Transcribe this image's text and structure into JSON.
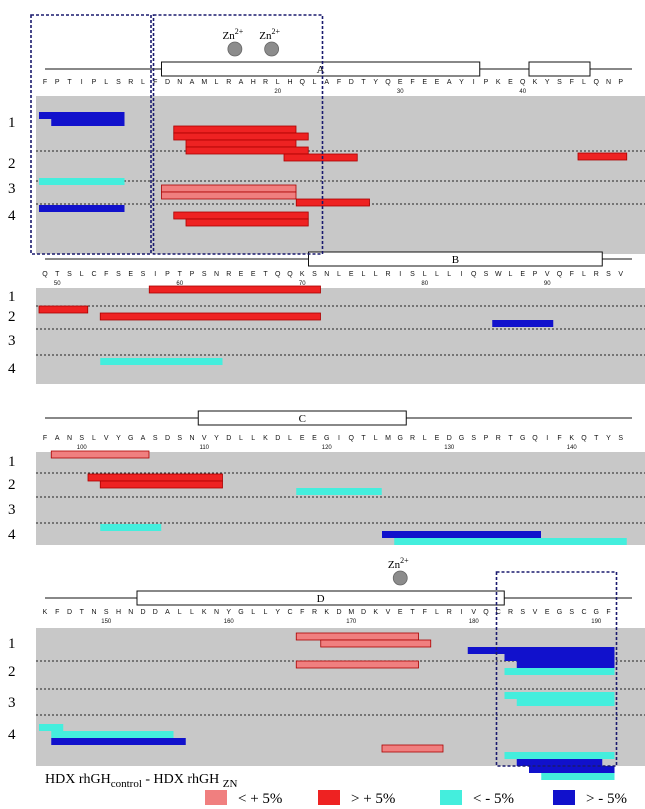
{
  "colors": {
    "light_red": "#f07f7f",
    "red": "#ee2222",
    "cyan": "#44eedd",
    "blue": "#1111cc",
    "panel": "#c8c8c8"
  },
  "zn_label": "Zn",
  "zn_superscript": "2+",
  "panels": [
    {
      "id": "p1",
      "sequence": "FPTIPLSRLFDNAMLRAHRLHQLAFDTYQEFEEAYIPKEQKYSFLQNP",
      "start": 1,
      "numbers": [
        {
          "pos": 20,
          "text": "20"
        },
        {
          "pos": 30,
          "text": "30"
        },
        {
          "pos": 40,
          "text": "40"
        }
      ],
      "helices": [
        {
          "name": "A",
          "start": 11,
          "end": 36
        },
        {
          "name": "",
          "start": 41,
          "end": 45
        }
      ],
      "zn": [
        {
          "pos": 16.5
        },
        {
          "pos": 19.5
        }
      ],
      "rows": [
        "1",
        "2",
        "3",
        "4"
      ],
      "peptides": [
        {
          "row": 1,
          "start": 1,
          "end": 7,
          "type": "blue"
        },
        {
          "row": 1,
          "start": 2,
          "end": 7,
          "type": "blue"
        },
        {
          "row": 1,
          "start": 12,
          "end": 21,
          "type": "red"
        },
        {
          "row": 1,
          "start": 12,
          "end": 22,
          "type": "red"
        },
        {
          "row": 1,
          "start": 13,
          "end": 21,
          "type": "red"
        },
        {
          "row": 1,
          "start": 13,
          "end": 22,
          "type": "red"
        },
        {
          "row": 1,
          "start": 21,
          "end": 26,
          "type": "red"
        },
        {
          "row": 2,
          "start": 45,
          "end": 48,
          "type": "red"
        },
        {
          "row": 3,
          "start": 1,
          "end": 7,
          "type": "cyan"
        },
        {
          "row": 3,
          "start": 11,
          "end": 21,
          "type": "light_red"
        },
        {
          "row": 3,
          "start": 11,
          "end": 21,
          "type": "light_red"
        },
        {
          "row": 3,
          "start": 22,
          "end": 27,
          "type": "red"
        },
        {
          "row": 4,
          "start": 1,
          "end": 7,
          "type": "blue"
        },
        {
          "row": 4,
          "start": 12,
          "end": 22,
          "type": "red"
        },
        {
          "row": 4,
          "start": 13,
          "end": 22,
          "type": "red"
        }
      ]
    },
    {
      "id": "p2",
      "sequence": "QTSLCFSESIPTPSNREETQQKSNLELLRISLLLIQSWLEPVQFLRSV",
      "start": 49,
      "numbers": [
        {
          "pos": 50,
          "text": "50"
        },
        {
          "pos": 60,
          "text": "60"
        },
        {
          "pos": 70,
          "text": "70"
        },
        {
          "pos": 80,
          "text": "80"
        },
        {
          "pos": 90,
          "text": "90"
        }
      ],
      "helices": [
        {
          "name": "B",
          "start": 71,
          "end": 94
        }
      ],
      "zn": [],
      "rows": [
        "1",
        "2",
        "3",
        "4"
      ],
      "peptides": [
        {
          "row": 1,
          "start": 58,
          "end": 71,
          "type": "red"
        },
        {
          "row": 2,
          "start": 49,
          "end": 52,
          "type": "red"
        },
        {
          "row": 2,
          "start": 54,
          "end": 71,
          "type": "red"
        },
        {
          "row": 2,
          "start": 86,
          "end": 90,
          "type": "blue"
        },
        {
          "row": 4,
          "start": 54,
          "end": 63,
          "type": "cyan"
        }
      ]
    },
    {
      "id": "p3",
      "sequence": "FANSLVYGASDSNVYDLLKDLEEGIQTLMGRLEDGSPRTGQIFKQTYS",
      "start": 97,
      "numbers": [
        {
          "pos": 100,
          "text": "100"
        },
        {
          "pos": 110,
          "text": "110"
        },
        {
          "pos": 120,
          "text": "120"
        },
        {
          "pos": 130,
          "text": "130"
        },
        {
          "pos": 140,
          "text": "140"
        }
      ],
      "helices": [
        {
          "name": "C",
          "start": 110,
          "end": 126
        }
      ],
      "zn": [],
      "rows": [
        "1",
        "2",
        "3",
        "4"
      ],
      "peptides": [
        {
          "row": 1,
          "start": 98,
          "end": 105,
          "type": "light_red"
        },
        {
          "row": 2,
          "start": 101,
          "end": 111,
          "type": "red"
        },
        {
          "row": 2,
          "start": 102,
          "end": 111,
          "type": "red"
        },
        {
          "row": 2,
          "start": 118,
          "end": 124,
          "type": "cyan"
        },
        {
          "row": 4,
          "start": 102,
          "end": 106,
          "type": "cyan"
        },
        {
          "row": 4,
          "start": 125,
          "end": 137,
          "type": "blue"
        },
        {
          "row": 4,
          "start": 126,
          "end": 144,
          "type": "cyan"
        }
      ]
    },
    {
      "id": "p4",
      "sequence": "KFDTNSHNDDALLKNYGLLYCFRKDMDKVETFLRIVQCRSVEGSCGF",
      "start": 145,
      "numbers": [
        {
          "pos": 150,
          "text": "150"
        },
        {
          "pos": 160,
          "text": "160"
        },
        {
          "pos": 170,
          "text": "170"
        },
        {
          "pos": 180,
          "text": "180"
        },
        {
          "pos": 190,
          "text": "190"
        }
      ],
      "helices": [
        {
          "name": "D",
          "start": 153,
          "end": 182
        }
      ],
      "zn": [
        {
          "pos": 174
        }
      ],
      "rows": [
        "1",
        "2",
        "3",
        "4"
      ],
      "peptides": [
        {
          "row": 1,
          "start": 166,
          "end": 175,
          "type": "light_red"
        },
        {
          "row": 1,
          "start": 168,
          "end": 176,
          "type": "light_red"
        },
        {
          "row": 1,
          "start": 180,
          "end": 191,
          "type": "blue"
        },
        {
          "row": 1,
          "start": 183,
          "end": 191,
          "type": "blue"
        },
        {
          "row": 1,
          "start": 184,
          "end": 191,
          "type": "blue"
        },
        {
          "row": 2,
          "start": 166,
          "end": 175,
          "type": "light_red"
        },
        {
          "row": 2,
          "start": 183,
          "end": 191,
          "type": "cyan"
        },
        {
          "row": 3,
          "start": 183,
          "end": 191,
          "type": "cyan"
        },
        {
          "row": 3,
          "start": 184,
          "end": 191,
          "type": "cyan"
        },
        {
          "row": 4,
          "start": 145,
          "end": 146,
          "type": "cyan"
        },
        {
          "row": 4,
          "start": 146,
          "end": 155,
          "type": "cyan"
        },
        {
          "row": 4,
          "start": 146,
          "end": 156,
          "type": "blue"
        },
        {
          "row": 4,
          "start": 173,
          "end": 177,
          "type": "light_red"
        },
        {
          "row": 4,
          "start": 183,
          "end": 191,
          "type": "cyan"
        },
        {
          "row": 4,
          "start": 184,
          "end": 190,
          "type": "blue"
        },
        {
          "row": 4,
          "start": 185,
          "end": 191,
          "type": "blue"
        },
        {
          "row": 4,
          "start": 186,
          "end": 191,
          "type": "cyan"
        }
      ]
    }
  ],
  "highlight_boxes": [
    {
      "panel": "p1",
      "start": 1,
      "end": 9
    },
    {
      "panel": "p1",
      "start": 11,
      "end": 23
    },
    {
      "panel": "p4",
      "start": 183,
      "end": 191
    }
  ],
  "legend": {
    "title_main": "HDX rhGH",
    "title_sub1": "control",
    "title_mid": " - HDX rhGH ",
    "title_sub2": "ZN",
    "items": [
      {
        "type": "light_red",
        "label": "< + 5%"
      },
      {
        "type": "red",
        "label": "> + 5%"
      },
      {
        "type": "cyan",
        "label": "< - 5%"
      },
      {
        "type": "blue",
        "label": "> - 5%"
      }
    ]
  }
}
